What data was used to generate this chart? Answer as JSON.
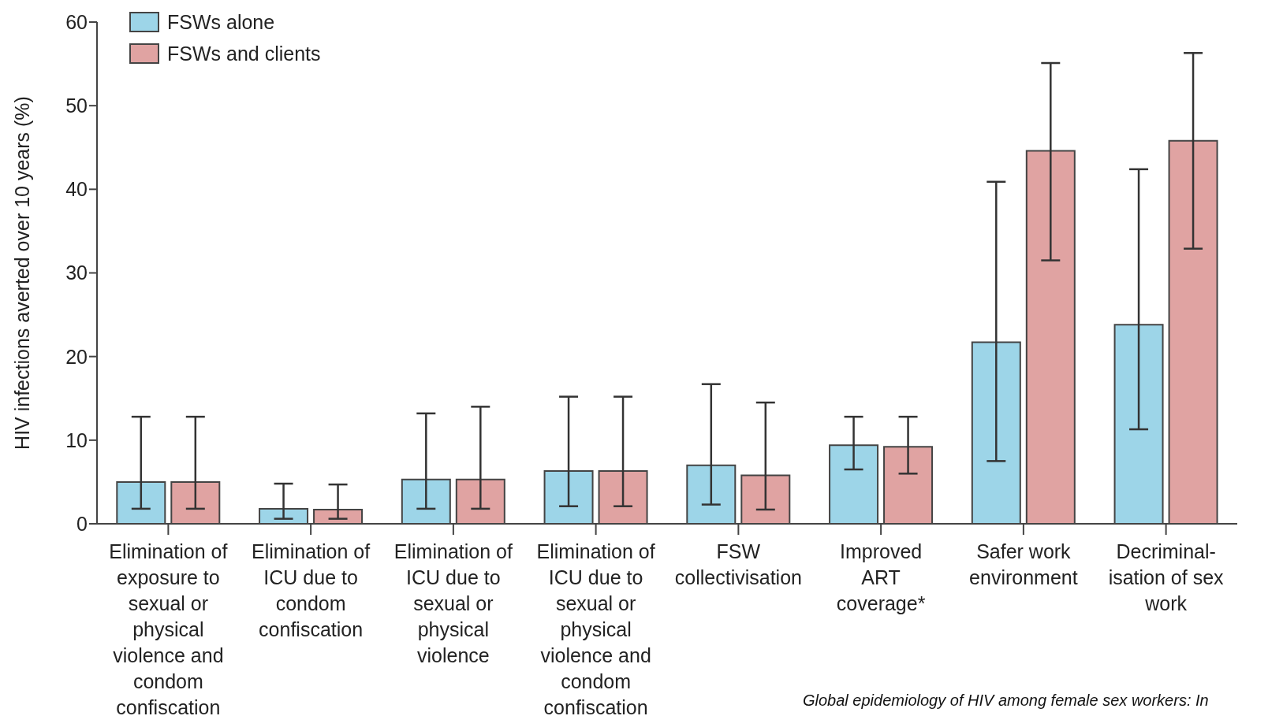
{
  "chart_data": {
    "type": "bar",
    "categories": [
      "Elimination of exposure to sexual or physical violence and condom confiscation",
      "Elimination of ICU due to condom confiscation",
      "Elimination of ICU due to sexual or physical violence",
      "Elimination of ICU due to sexual or physical violence and condom confiscation",
      "FSW collectivisation",
      "Improved ART coverage*",
      "Safer work environment",
      "Decriminal-isation of sex work"
    ],
    "series": [
      {
        "name": "FSWs alone",
        "color": "#9dd5e8",
        "values": [
          5.0,
          1.8,
          5.3,
          6.3,
          7.0,
          9.4,
          21.7,
          23.8
        ],
        "errors": [
          [
            1.8,
            12.8
          ],
          [
            0.6,
            4.8
          ],
          [
            1.8,
            13.2
          ],
          [
            2.1,
            15.2
          ],
          [
            2.3,
            16.7
          ],
          [
            6.5,
            12.8
          ],
          [
            7.5,
            40.9
          ],
          [
            11.3,
            42.4
          ]
        ]
      },
      {
        "name": "FSWs and clients",
        "color": "#e0a3a2",
        "values": [
          5.0,
          1.7,
          5.3,
          6.3,
          5.8,
          9.2,
          44.6,
          45.8
        ],
        "errors": [
          [
            1.8,
            12.8
          ],
          [
            0.6,
            4.7
          ],
          [
            1.8,
            14.0
          ],
          [
            2.1,
            15.2
          ],
          [
            1.7,
            14.5
          ],
          [
            6.0,
            12.8
          ],
          [
            31.5,
            55.1
          ],
          [
            32.9,
            56.3
          ]
        ]
      }
    ],
    "ylabel": "HIV infections averted over 10 years (%)",
    "ylim": [
      0,
      60
    ],
    "yticks": [
      0,
      10,
      20,
      30,
      40,
      50,
      60
    ],
    "legend": "top left",
    "grid": false,
    "annotations": [
      "Global epidemiology of HIV among female sex workers:  In"
    ]
  }
}
